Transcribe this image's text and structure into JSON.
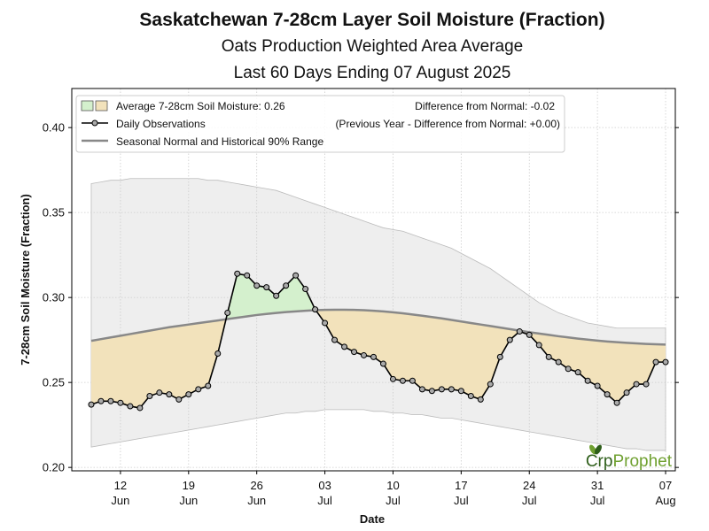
{
  "chart_data": {
    "type": "line",
    "title": "Saskatchewan 7-28cm Layer Soil Moisture (Fraction)",
    "subtitle_1": "Oats Production Weighted Area Average",
    "subtitle_2": "Last 60 Days Ending 07 August 2025",
    "xlabel": "Date",
    "ylabel": "7-28cm Soil Moisture (Fraction)",
    "ylim": [
      0.198,
      0.423
    ],
    "xlim": [
      "2025-06-07",
      "2025-08-08"
    ],
    "yticks": [
      0.2,
      0.25,
      0.3,
      0.35,
      0.4
    ],
    "ytick_labels": [
      "0.20",
      "0.25",
      "0.30",
      "0.35",
      "0.40"
    ],
    "xticks": [
      {
        "date": "2025-06-12",
        "day": "12",
        "month": "Jun"
      },
      {
        "date": "2025-06-19",
        "day": "19",
        "month": "Jun"
      },
      {
        "date": "2025-06-26",
        "day": "26",
        "month": "Jun"
      },
      {
        "date": "2025-07-03",
        "day": "03",
        "month": "Jul"
      },
      {
        "date": "2025-07-10",
        "day": "10",
        "month": "Jul"
      },
      {
        "date": "2025-07-17",
        "day": "17",
        "month": "Jul"
      },
      {
        "date": "2025-07-24",
        "day": "24",
        "month": "Jul"
      },
      {
        "date": "2025-07-31",
        "day": "31",
        "month": "Jul"
      },
      {
        "date": "2025-08-07",
        "day": "07",
        "month": "Aug"
      }
    ],
    "grid": true,
    "legend_placement": "top",
    "legend": {
      "average_label": "Average 7-28cm Soil Moisture: 0.26",
      "difference_label": "Difference from Normal: -0.02",
      "observations_label": "Daily Observations",
      "previous_year_label": "(Previous Year - Difference from Normal: +0.00)",
      "normal_label": "Seasonal Normal and Historical 90% Range"
    },
    "dates": [
      "2025-06-09",
      "2025-06-10",
      "2025-06-11",
      "2025-06-12",
      "2025-06-13",
      "2025-06-14",
      "2025-06-15",
      "2025-06-16",
      "2025-06-17",
      "2025-06-18",
      "2025-06-19",
      "2025-06-20",
      "2025-06-21",
      "2025-06-22",
      "2025-06-23",
      "2025-06-24",
      "2025-06-25",
      "2025-06-26",
      "2025-06-27",
      "2025-06-28",
      "2025-06-29",
      "2025-06-30",
      "2025-07-01",
      "2025-07-02",
      "2025-07-03",
      "2025-07-04",
      "2025-07-05",
      "2025-07-06",
      "2025-07-07",
      "2025-07-08",
      "2025-07-09",
      "2025-07-10",
      "2025-07-11",
      "2025-07-12",
      "2025-07-13",
      "2025-07-14",
      "2025-07-15",
      "2025-07-16",
      "2025-07-17",
      "2025-07-18",
      "2025-07-19",
      "2025-07-20",
      "2025-07-21",
      "2025-07-22",
      "2025-07-23",
      "2025-07-24",
      "2025-07-25",
      "2025-07-26",
      "2025-07-27",
      "2025-07-28",
      "2025-07-29",
      "2025-07-30",
      "2025-07-31",
      "2025-08-01",
      "2025-08-02",
      "2025-08-03",
      "2025-08-04",
      "2025-08-05",
      "2025-08-06",
      "2025-08-07"
    ],
    "series": [
      {
        "name": "Daily Observations",
        "values": [
          0.237,
          0.239,
          0.239,
          0.238,
          0.236,
          0.235,
          0.242,
          0.244,
          0.243,
          0.24,
          0.243,
          0.246,
          0.248,
          0.267,
          0.291,
          0.314,
          0.313,
          0.307,
          0.306,
          0.301,
          0.307,
          0.313,
          0.305,
          0.293,
          0.285,
          0.275,
          0.271,
          0.268,
          0.266,
          0.265,
          0.261,
          0.252,
          0.251,
          0.251,
          0.246,
          0.245,
          0.246,
          0.246,
          0.245,
          0.242,
          0.24,
          0.249,
          0.265,
          0.275,
          0.28,
          0.278,
          0.272,
          0.265,
          0.262,
          0.258,
          0.256,
          0.251,
          0.248,
          0.243,
          0.238,
          0.244,
          0.249,
          0.249,
          0.262,
          0.262
        ]
      },
      {
        "name": "Seasonal Normal",
        "values": [
          0.2745,
          0.2755,
          0.2765,
          0.2775,
          0.2785,
          0.2795,
          0.2805,
          0.2815,
          0.2825,
          0.2833,
          0.2841,
          0.2849,
          0.2857,
          0.2865,
          0.2873,
          0.2881,
          0.2889,
          0.2897,
          0.2903,
          0.2909,
          0.2914,
          0.2918,
          0.2922,
          0.2925,
          0.2927,
          0.2928,
          0.2928,
          0.2927,
          0.2925,
          0.2922,
          0.2918,
          0.2913,
          0.2907,
          0.29,
          0.2893,
          0.2885,
          0.2877,
          0.2868,
          0.2859,
          0.285,
          0.2841,
          0.2832,
          0.2823,
          0.2814,
          0.2805,
          0.2796,
          0.2788,
          0.278,
          0.2772,
          0.2765,
          0.2758,
          0.2752,
          0.2746,
          0.2741,
          0.2737,
          0.2733,
          0.273,
          0.2727,
          0.2725,
          0.2723
        ]
      },
      {
        "name": "Historical 90% Range Upper",
        "values": [
          0.367,
          0.368,
          0.369,
          0.369,
          0.37,
          0.37,
          0.37,
          0.37,
          0.37,
          0.37,
          0.37,
          0.37,
          0.369,
          0.369,
          0.368,
          0.367,
          0.366,
          0.365,
          0.364,
          0.363,
          0.361,
          0.359,
          0.357,
          0.355,
          0.353,
          0.351,
          0.349,
          0.347,
          0.345,
          0.343,
          0.341,
          0.34,
          0.339,
          0.337,
          0.335,
          0.333,
          0.331,
          0.329,
          0.326,
          0.323,
          0.32,
          0.317,
          0.313,
          0.309,
          0.305,
          0.301,
          0.297,
          0.294,
          0.291,
          0.289,
          0.287,
          0.285,
          0.284,
          0.283,
          0.282,
          0.282,
          0.282,
          0.282,
          0.282,
          0.282
        ]
      },
      {
        "name": "Historical 90% Range Lower",
        "values": [
          0.212,
          0.213,
          0.214,
          0.215,
          0.216,
          0.217,
          0.218,
          0.219,
          0.22,
          0.221,
          0.222,
          0.223,
          0.224,
          0.225,
          0.226,
          0.227,
          0.228,
          0.229,
          0.23,
          0.231,
          0.232,
          0.232,
          0.233,
          0.233,
          0.234,
          0.234,
          0.234,
          0.234,
          0.234,
          0.233,
          0.233,
          0.232,
          0.232,
          0.231,
          0.231,
          0.23,
          0.229,
          0.229,
          0.228,
          0.227,
          0.226,
          0.225,
          0.224,
          0.223,
          0.222,
          0.221,
          0.22,
          0.219,
          0.218,
          0.217,
          0.216,
          0.215,
          0.214,
          0.213,
          0.212,
          0.211,
          0.211,
          0.21,
          0.21,
          0.21
        ]
      }
    ],
    "colors": {
      "above_normal_fill": "#d4f0cd",
      "below_normal_fill": "#f2e2bb",
      "range_fill": "#eeeeee",
      "range_edge": "#bbbbbb",
      "normal_line": "#888888",
      "obs_line": "#000000",
      "marker_fill": "#aaaaaa",
      "grid": "#cccccc"
    }
  },
  "logo": {
    "part1": "Cr",
    "part2": "p",
    "part3": "Prophet",
    "color_dark": "#2e5e1a",
    "color_light": "#6fa030"
  }
}
